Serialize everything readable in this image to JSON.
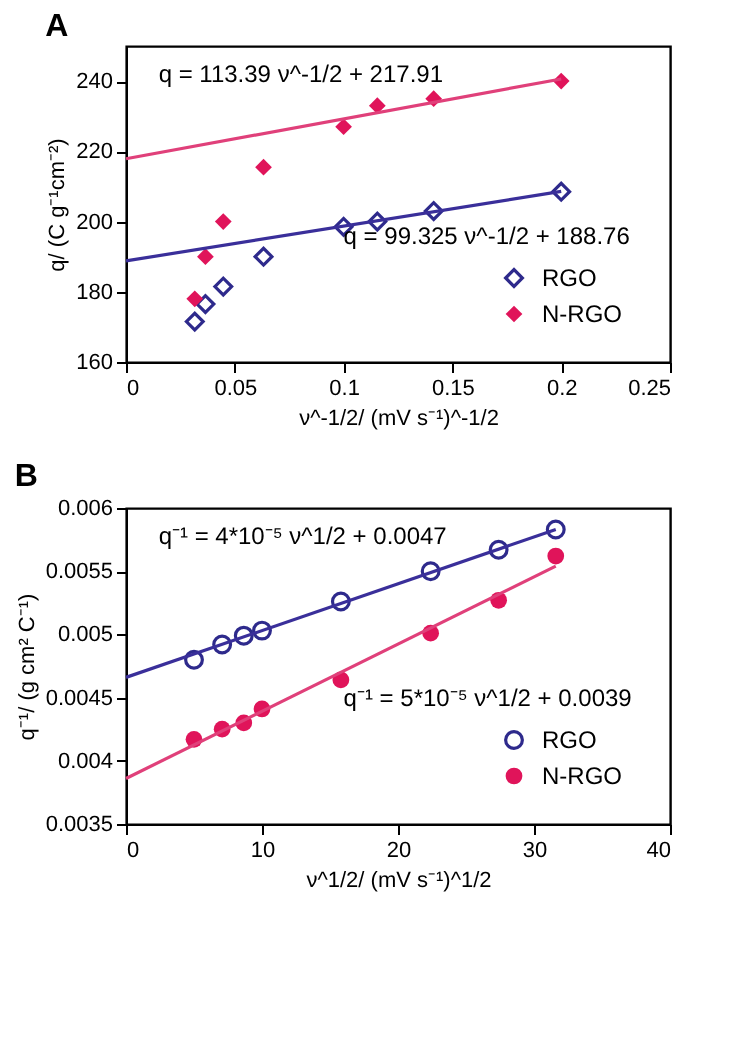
{
  "chart_data": [
    {
      "type": "scatter",
      "title": "A",
      "xlabel": "ν^-1/2/ (mV s⁻¹)^-1/2",
      "ylabel": "q/ (C g⁻¹cm⁻²)",
      "xlim": [
        0,
        0.25
      ],
      "xticks": [
        0,
        0.05,
        0.1,
        0.15,
        0.2,
        0.25
      ],
      "ylim": [
        160,
        250
      ],
      "yticks": [
        160,
        180,
        200,
        220,
        240
      ],
      "grid": false,
      "legend": "bottom right",
      "x": [
        0.0316,
        0.0365,
        0.0447,
        0.0632,
        0.1,
        0.1155,
        0.1414,
        0.2
      ],
      "series": [
        {
          "name": "RGO",
          "color": "#2e2a8c",
          "marker": "diamond",
          "values": [
            171.5,
            176.5,
            181.5,
            190,
            198.5,
            200,
            203,
            208.5
          ]
        },
        {
          "name": "N-RGO",
          "color": "#e0145a",
          "marker": "diamond",
          "values": [
            178,
            190,
            200,
            215.5,
            227,
            233,
            235,
            240
          ]
        },
        {
          "type": "line",
          "color": "#3a2f9a",
          "x": [
            0,
            0.2
          ],
          "values": [
            188.8,
            208.6
          ]
        },
        {
          "type": "line",
          "color": "#e0407a",
          "x": [
            0,
            0.2
          ],
          "values": [
            217.9,
            240.6
          ]
        }
      ],
      "annotations": [
        "q = 113.39 ν^-1/2 + 217.91",
        "q = 99.325 ν^-1/2 + 188.76"
      ]
    },
    {
      "type": "scatter",
      "title": "B",
      "xlabel": "ν^1/2/ (mV s⁻¹)^1/2",
      "ylabel": "q⁻¹/ (g cm² C⁻¹)",
      "xlim": [
        0,
        40
      ],
      "xticks": [
        0,
        10,
        20,
        30,
        40
      ],
      "ylim": [
        0.0035,
        0.006
      ],
      "yticks": [
        0.0035,
        0.004,
        0.0045,
        0.005,
        0.0055,
        0.006
      ],
      "grid": false,
      "legend": "bottom right",
      "x": [
        5,
        7.07,
        8.66,
        10,
        15.8,
        22.4,
        27.4,
        31.6
      ],
      "series": [
        {
          "name": "RGO",
          "color": "#2e2a8c",
          "marker": "circle",
          "values": [
            0.0048,
            0.00492,
            0.00499,
            0.00503,
            0.00526,
            0.0055,
            0.00567,
            0.00583
          ]
        },
        {
          "name": "N-RGO",
          "color": "#e0145a",
          "marker": "circle",
          "values": [
            0.00417,
            0.00425,
            0.0043,
            0.00441,
            0.00464,
            0.00501,
            0.00527,
            0.00562
          ]
        },
        {
          "type": "line",
          "color": "#3a2f9a",
          "x": [
            0,
            31.6
          ],
          "values": [
            0.00466,
            0.00583
          ]
        },
        {
          "type": "line",
          "color": "#e0407a",
          "x": [
            0,
            31.6
          ],
          "values": [
            0.00386,
            0.00554
          ]
        }
      ],
      "annotations": [
        "q⁻¹ = 4*10⁻⁵ ν^1/2 + 0.0047",
        "q⁻¹ = 5*10⁻⁵ ν^1/2 + 0.0039"
      ]
    }
  ]
}
